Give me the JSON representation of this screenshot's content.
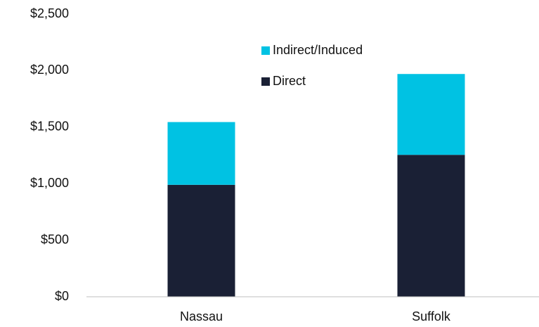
{
  "chart_data": {
    "type": "stacked_bar",
    "categories": [
      "Nassau",
      "Suffolk"
    ],
    "series": [
      {
        "name": "Direct",
        "color": "#1a2035",
        "values": [
          990,
          1255
        ]
      },
      {
        "name": "Indirect/Induced",
        "color": "#00c2e3",
        "values": [
          555,
          715
        ]
      }
    ],
    "ylim": [
      0,
      2500
    ],
    "yticks": [
      {
        "value": 0,
        "label": "$0"
      },
      {
        "value": 500,
        "label": "$500"
      },
      {
        "value": 1000,
        "label": "$1,000"
      },
      {
        "value": 1500,
        "label": "$1,500"
      },
      {
        "value": 2000,
        "label": "$2,000"
      },
      {
        "value": 2500,
        "label": "$2,500"
      }
    ],
    "grid": false,
    "legend": "top"
  }
}
